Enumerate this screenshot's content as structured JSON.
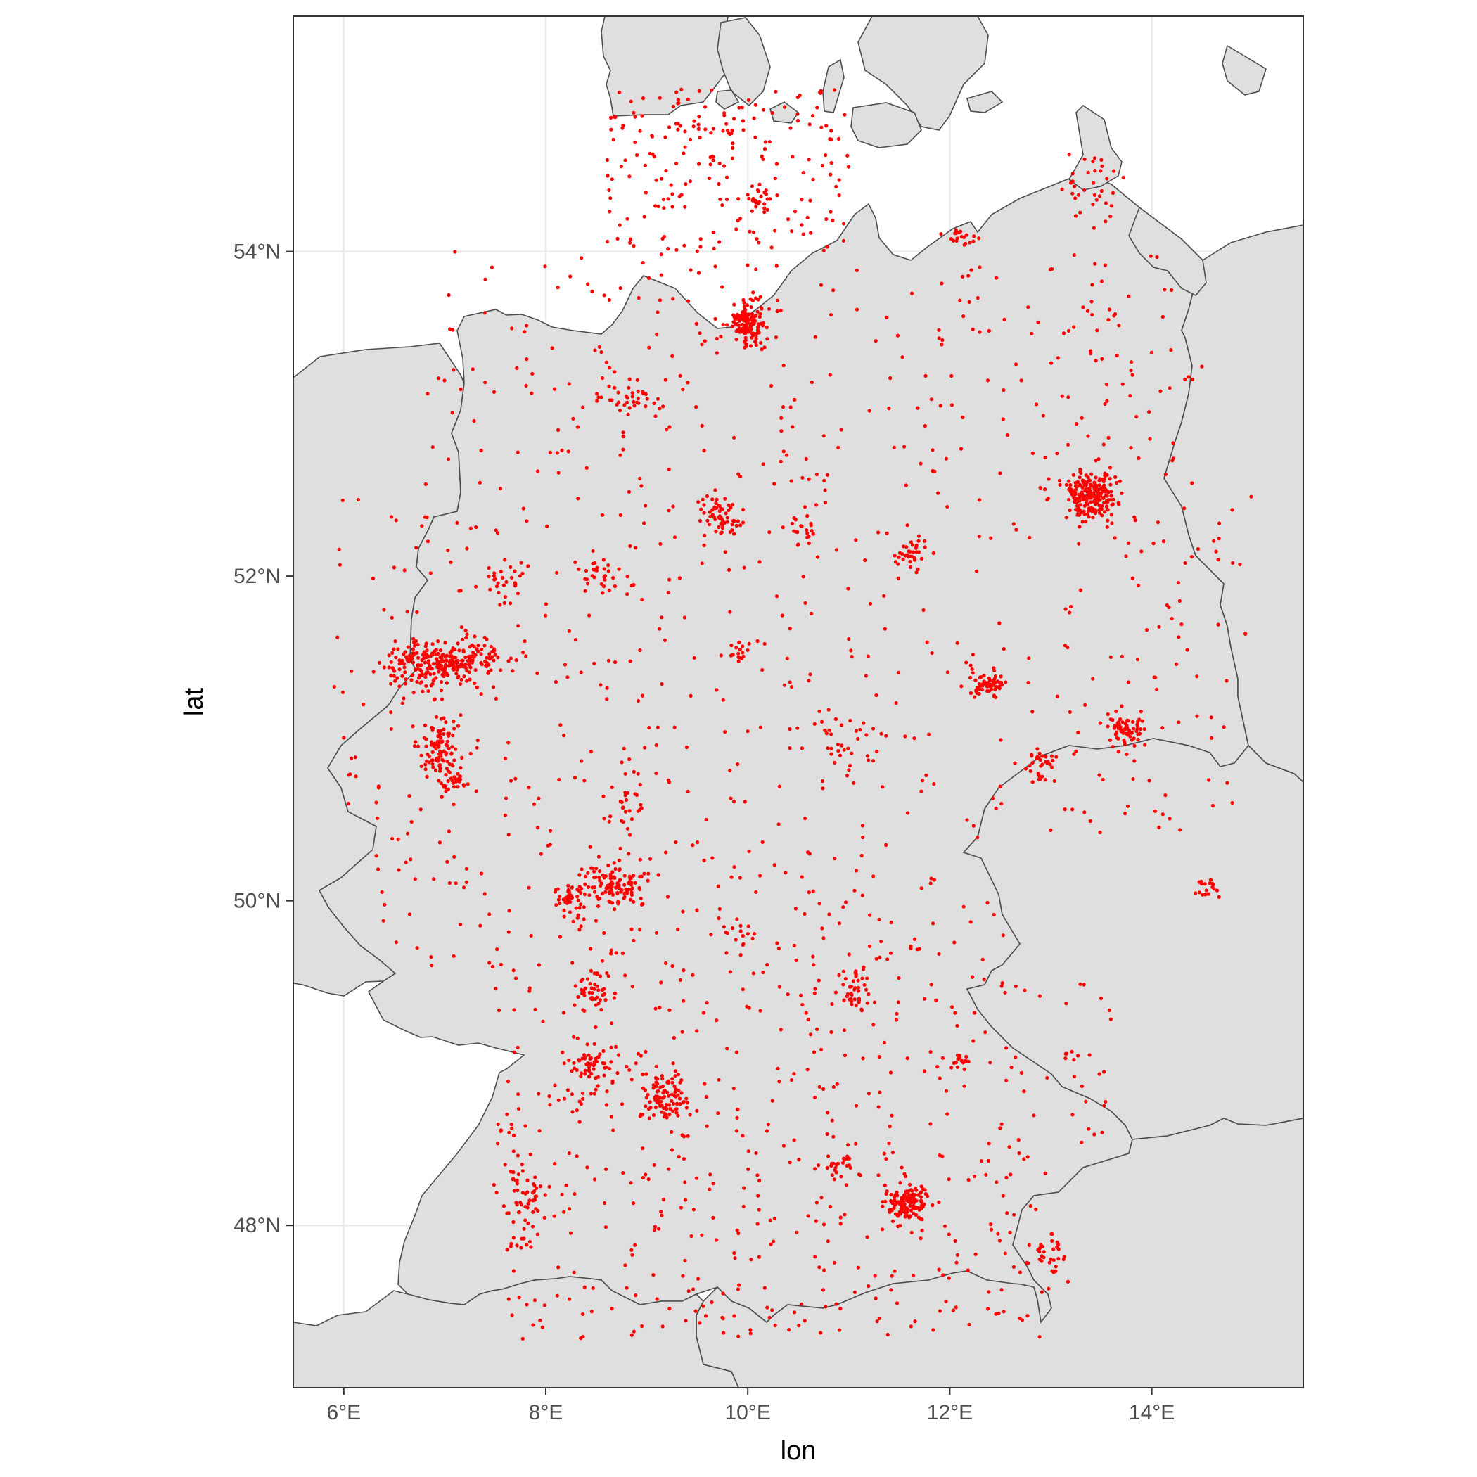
{
  "chart_data": {
    "type": "scatter",
    "title": "",
    "xlabel": "lon",
    "ylabel": "lat",
    "xlim": [
      5.5,
      15.5
    ],
    "ylim": [
      47.0,
      55.45
    ],
    "x_ticks": [
      6,
      8,
      10,
      12,
      14
    ],
    "x_tick_labels": [
      "6°E",
      "8°E",
      "10°E",
      "12°E",
      "14°E"
    ],
    "y_ticks": [
      48,
      50,
      52,
      54
    ],
    "y_tick_labels": [
      "48°N",
      "50°N",
      "52°N",
      "54°N"
    ],
    "grid": true,
    "legend": "none",
    "colors": {
      "points": "#ff0000",
      "land": "#dfdfdf",
      "water": "#ffffff",
      "borders": "#4d4d4d",
      "gridlines": "#ebebeb"
    },
    "clusters": [
      {
        "lon": 13.4,
        "lat": 52.5,
        "sd_lon": 0.13,
        "sd_lat": 0.07,
        "n": 220
      },
      {
        "lon": 10.0,
        "lat": 53.55,
        "sd_lon": 0.09,
        "sd_lat": 0.06,
        "n": 130
      },
      {
        "lon": 11.57,
        "lat": 48.14,
        "sd_lon": 0.1,
        "sd_lat": 0.06,
        "n": 130
      },
      {
        "lon": 6.95,
        "lat": 50.94,
        "sd_lon": 0.1,
        "sd_lat": 0.09,
        "n": 90
      },
      {
        "lon": 6.78,
        "lat": 51.43,
        "sd_lon": 0.2,
        "sd_lat": 0.08,
        "n": 140
      },
      {
        "lon": 7.2,
        "lat": 51.49,
        "sd_lon": 0.2,
        "sd_lat": 0.06,
        "n": 140
      },
      {
        "lon": 8.68,
        "lat": 50.11,
        "sd_lon": 0.15,
        "sd_lat": 0.07,
        "n": 110
      },
      {
        "lon": 8.25,
        "lat": 50.02,
        "sd_lon": 0.08,
        "sd_lat": 0.05,
        "n": 40
      },
      {
        "lon": 9.18,
        "lat": 48.77,
        "sd_lon": 0.12,
        "sd_lat": 0.08,
        "n": 90
      },
      {
        "lon": 8.47,
        "lat": 49.45,
        "sd_lon": 0.09,
        "sd_lat": 0.08,
        "n": 45
      },
      {
        "lon": 8.5,
        "lat": 48.9,
        "sd_lon": 0.25,
        "sd_lat": 0.12,
        "n": 60
      },
      {
        "lon": 12.37,
        "lat": 51.34,
        "sd_lon": 0.08,
        "sd_lat": 0.05,
        "n": 60
      },
      {
        "lon": 13.74,
        "lat": 51.05,
        "sd_lon": 0.1,
        "sd_lat": 0.06,
        "n": 70
      },
      {
        "lon": 9.74,
        "lat": 52.37,
        "sd_lon": 0.1,
        "sd_lat": 0.06,
        "n": 60
      },
      {
        "lon": 11.07,
        "lat": 49.45,
        "sd_lon": 0.08,
        "sd_lat": 0.07,
        "n": 40
      },
      {
        "lon": 7.75,
        "lat": 48.2,
        "sd_lon": 0.1,
        "sd_lat": 0.15,
        "n": 60
      },
      {
        "lon": 11.63,
        "lat": 52.12,
        "sd_lon": 0.1,
        "sd_lat": 0.06,
        "n": 35
      },
      {
        "lon": 11.02,
        "lat": 50.98,
        "sd_lon": 0.2,
        "sd_lat": 0.1,
        "n": 35
      },
      {
        "lon": 12.92,
        "lat": 50.83,
        "sd_lon": 0.08,
        "sd_lat": 0.06,
        "n": 30
      },
      {
        "lon": 8.8,
        "lat": 53.08,
        "sd_lon": 0.15,
        "sd_lat": 0.05,
        "n": 35
      },
      {
        "lon": 14.55,
        "lat": 50.08,
        "sd_lon": 0.06,
        "sd_lat": 0.03,
        "n": 18
      },
      {
        "lon": 7.62,
        "lat": 51.96,
        "sd_lon": 0.09,
        "sd_lat": 0.06,
        "n": 25
      },
      {
        "lon": 8.53,
        "lat": 52.02,
        "sd_lon": 0.1,
        "sd_lat": 0.06,
        "n": 30
      },
      {
        "lon": 9.93,
        "lat": 51.53,
        "sd_lon": 0.06,
        "sd_lat": 0.05,
        "n": 15
      },
      {
        "lon": 10.53,
        "lat": 52.27,
        "sd_lon": 0.07,
        "sd_lat": 0.05,
        "n": 20
      },
      {
        "lon": 10.9,
        "lat": 48.37,
        "sd_lon": 0.06,
        "sd_lat": 0.05,
        "n": 20
      },
      {
        "lon": 13.0,
        "lat": 47.8,
        "sd_lon": 0.1,
        "sd_lat": 0.08,
        "n": 30
      },
      {
        "lon": 12.1,
        "lat": 54.09,
        "sd_lon": 0.08,
        "sd_lat": 0.03,
        "n": 20
      },
      {
        "lon": 10.13,
        "lat": 54.32,
        "sd_lon": 0.06,
        "sd_lat": 0.04,
        "n": 20
      },
      {
        "lon": 9.93,
        "lat": 49.79,
        "sd_lon": 0.06,
        "sd_lat": 0.05,
        "n": 15
      },
      {
        "lon": 8.4,
        "lat": 49.0,
        "sd_lon": 0.07,
        "sd_lat": 0.05,
        "n": 20
      },
      {
        "lon": 7.1,
        "lat": 50.73,
        "sd_lon": 0.08,
        "sd_lat": 0.05,
        "n": 25
      },
      {
        "lon": 13.4,
        "lat": 54.4,
        "sd_lon": 0.15,
        "sd_lat": 0.12,
        "n": 35
      },
      {
        "lon": 12.1,
        "lat": 49.02,
        "sd_lon": 0.06,
        "sd_lat": 0.04,
        "n": 15
      },
      {
        "lon": 8.8,
        "lat": 50.6,
        "sd_lon": 0.1,
        "sd_lat": 0.2,
        "n": 30
      },
      {
        "lon": 9.7,
        "lat": 54.7,
        "sd_lon": 0.2,
        "sd_lat": 0.1,
        "n": 25
      }
    ],
    "background_points": 1500
  },
  "labels": {
    "x_title": "lon",
    "y_title": "lat",
    "x_ticks": [
      "6°E",
      "8°E",
      "10°E",
      "12°E",
      "14°E"
    ],
    "y_ticks": [
      "48°N",
      "50°N",
      "52°N",
      "54°N"
    ]
  }
}
